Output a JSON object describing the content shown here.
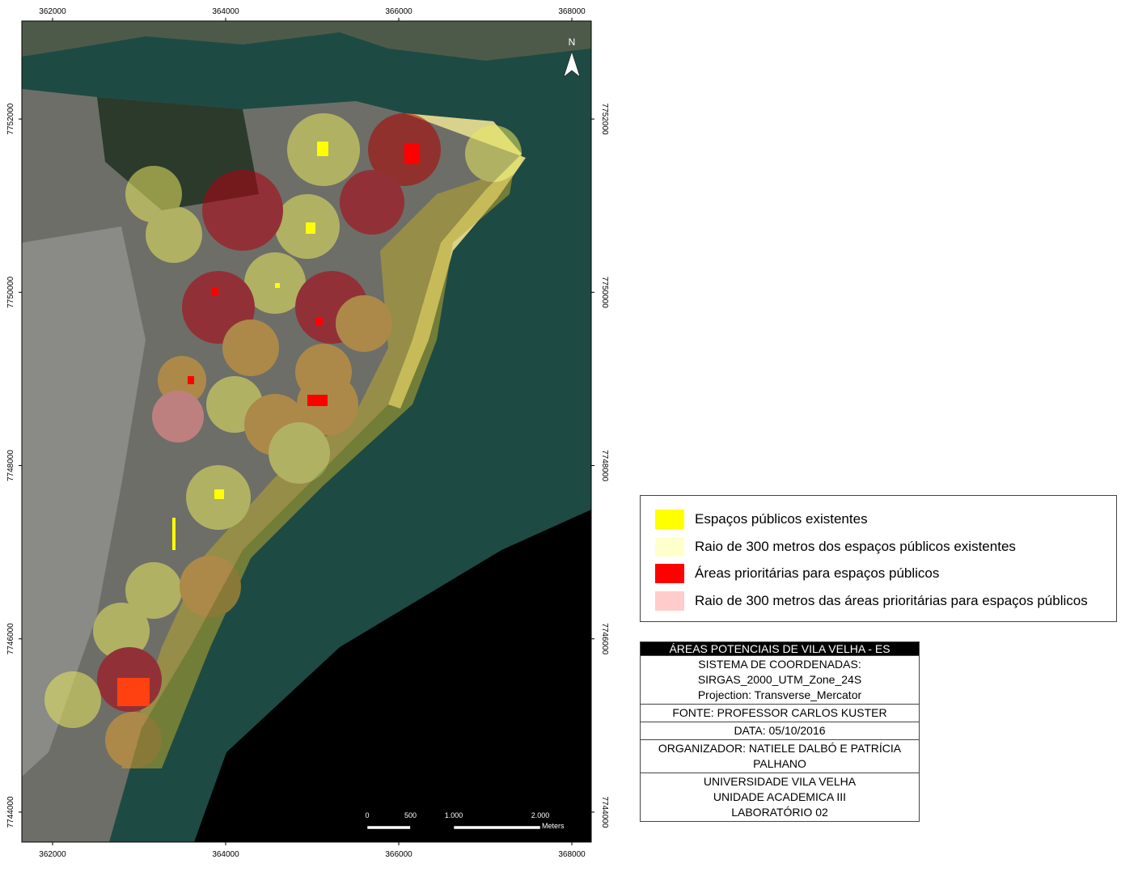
{
  "map": {
    "north": "N",
    "xlim": [
      361645,
      368224
    ],
    "ylim": [
      7743654,
      7753131
    ],
    "xticks": [
      362000,
      364000,
      366000,
      368000
    ],
    "yticks": [
      7744000,
      7746000,
      7748000,
      7750000,
      7752000
    ],
    "scale_bar": {
      "ticks": [
        0,
        500,
        {
          "value": 1000,
          "label": "1.000"
        },
        {
          "value": 2000,
          "label": "2.000"
        }
      ],
      "unit": "Meters"
    }
  },
  "legend": [
    {
      "label": "Espaços públicos existentes",
      "color": "#ffff00"
    },
    {
      "label": "Raio de 300 metros dos espaços públicos existentes",
      "color": "#ffffcc"
    },
    {
      "label": "Áreas prioritárias para espaços públicos",
      "color": "#ff0000"
    },
    {
      "label": "Raio de 300 metros das áreas prioritárias para espaços públicos",
      "color": "#ffcccc"
    }
  ],
  "info_box": {
    "title": "ÁREAS POTENCIAIS DE VILA VELHA - ES",
    "sections": [
      [
        "SISTEMA DE COORDENADAS:",
        "SIRGAS_2000_UTM_Zone_24S",
        "Projection: Transverse_Mercator"
      ],
      [
        "FONTE: PROFESSOR CARLOS KUSTER"
      ],
      [
        "DATA: 05/10/2016"
      ],
      [
        "ORGANIZADOR: NATIELE DALBÓ E PATRÍCIA PALHANO"
      ],
      [
        "UNIVERSIDADE VILA VELHA",
        "UNIDADE ACADEMICA III",
        "LABORATÓRIO 02"
      ]
    ]
  }
}
